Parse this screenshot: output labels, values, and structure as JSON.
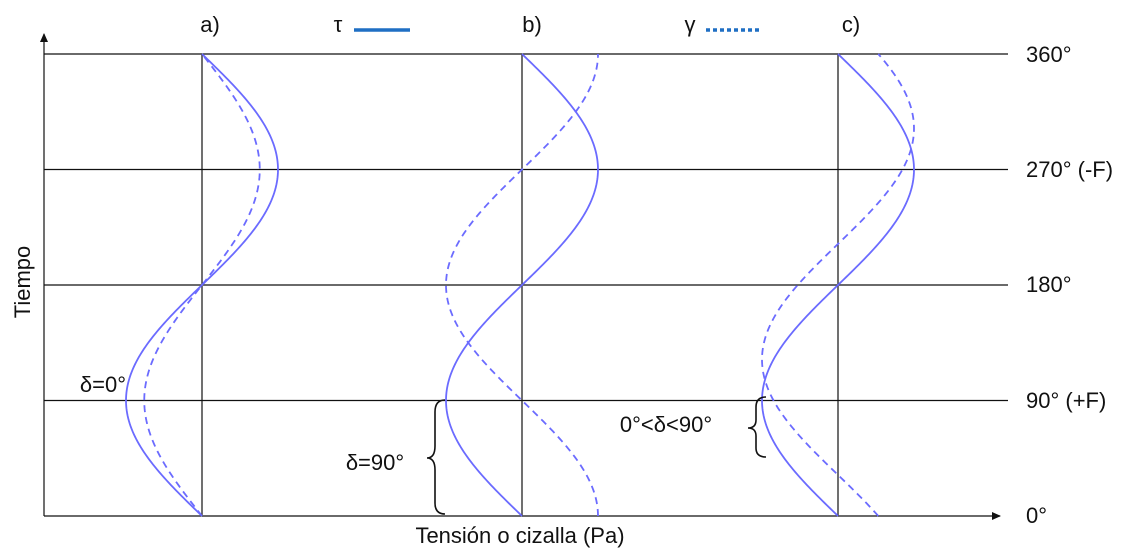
{
  "title": "",
  "y_axis_label": "Tiempo",
  "x_axis_label": "Tensión o cizalla (Pa)",
  "time_levels": [
    {
      "deg": 0,
      "label": "0°"
    },
    {
      "deg": 90,
      "label": "90° (+F)"
    },
    {
      "deg": 180,
      "label": "180°"
    },
    {
      "deg": 270,
      "label": "270° (-F)"
    },
    {
      "deg": 360,
      "label": "360°"
    }
  ],
  "legend": [
    {
      "symbol": "τ",
      "style": "solid",
      "color": "#1f6fc4"
    },
    {
      "symbol": "γ",
      "style": "dotted",
      "color": "#1f6fc4"
    }
  ],
  "curve_color": "#6b6bff",
  "panels": [
    {
      "label": "a)",
      "phase_label": "δ=0°",
      "stress_amplitude": 1.0,
      "strain_amplitude": 0.76,
      "phase_shift_deg": 0
    },
    {
      "label": "b)",
      "phase_label": "δ=90°",
      "stress_amplitude": 1.0,
      "strain_amplitude": 1.0,
      "phase_shift_deg": 90
    },
    {
      "label": "c)",
      "phase_label": "0°<δ<90°",
      "stress_amplitude": 1.0,
      "strain_amplitude": 1.0,
      "phase_shift_deg": 32
    }
  ]
}
